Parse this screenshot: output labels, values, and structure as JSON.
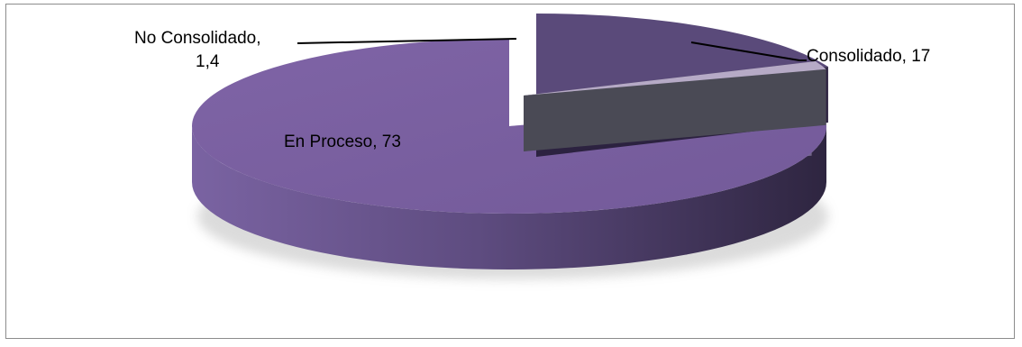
{
  "chart_data": {
    "type": "pie",
    "style": "3d-exploded",
    "title": "",
    "slices": [
      {
        "label": "Consolidado",
        "value": 17,
        "value_text": "17",
        "color": "#5a4a7a",
        "data_label": "Consolidado, 17"
      },
      {
        "label": "No Consolidado",
        "value": 1.4,
        "value_text": "1,4",
        "color": "#b6aac6",
        "data_label_line1": "No Consolidado,",
        "data_label_line2": "1,4"
      },
      {
        "label": "En Proceso",
        "value": 73,
        "value_text": "73",
        "color": "#7a5e9c",
        "data_label": "En Proceso, 73"
      }
    ],
    "legend": "none"
  }
}
